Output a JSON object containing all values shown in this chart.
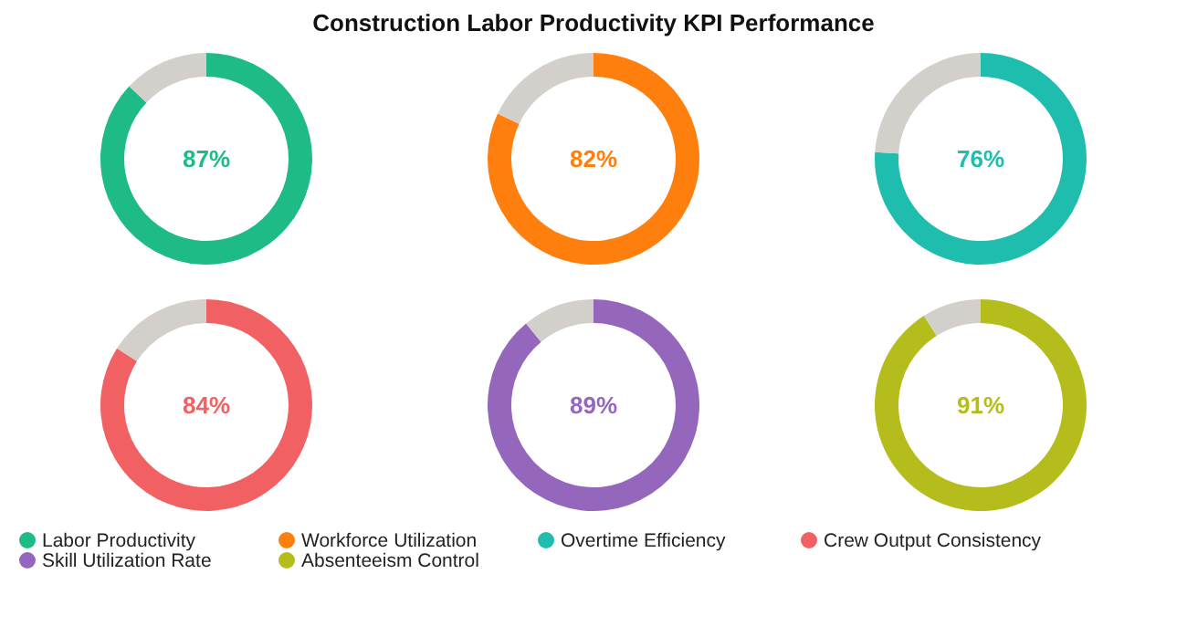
{
  "chart_data": [
    {
      "type": "donut",
      "categories": [
        "Labor Productivity",
        null
      ],
      "values": [
        87,
        13
      ],
      "colors": [
        "#1fbb86",
        "#d3cfca"
      ],
      "value_labels": [
        "87%",
        null
      ],
      "legend": "bottom"
    },
    {
      "type": "donut",
      "title": "Construction Labor Productivity KPI Performance",
      "categories": [
        "Workforce Utilization",
        null
      ],
      "values": [
        82,
        18
      ],
      "colors": [
        "#fe7f0e",
        "#d3cfca"
      ],
      "value_labels": [
        "82%",
        null
      ],
      "legend": "bottom"
    },
    {
      "type": "donut",
      "categories": [
        "Overtime Efficiency",
        null
      ],
      "values": [
        76,
        24
      ],
      "colors": [
        "#1fbdae",
        "#d3cfca"
      ],
      "value_labels": [
        "76%",
        null
      ],
      "legend": "bottom"
    },
    {
      "type": "donut",
      "categories": [
        "Crew Output Consistency",
        null
      ],
      "values": [
        84,
        16
      ],
      "colors": [
        "#f16163",
        "#d3cfca"
      ],
      "value_labels": [
        "84%",
        null
      ],
      "legend": "bottom"
    },
    {
      "type": "donut",
      "categories": [
        "Skill Utilization Rate",
        null
      ],
      "values": [
        89,
        11
      ],
      "colors": [
        "#9467bd",
        "#d3cfca"
      ],
      "value_labels": [
        "89%",
        null
      ],
      "legend": "bottom"
    },
    {
      "type": "donut",
      "categories": [
        "Absenteeism Control",
        null
      ],
      "values": [
        91,
        9
      ],
      "colors": [
        "#b5bd1d",
        "#d3cfca"
      ],
      "value_labels": [
        "91%",
        null
      ],
      "legend": "bottom"
    }
  ]
}
